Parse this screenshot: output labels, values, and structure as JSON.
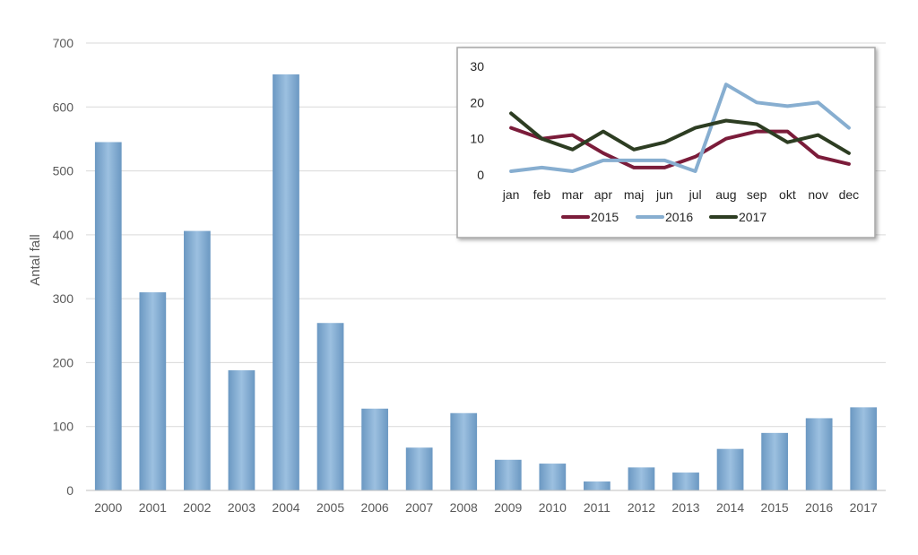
{
  "chart_data": [
    {
      "type": "bar",
      "title": "",
      "xlabel": "",
      "ylabel": "Antal fall",
      "ylim": [
        0,
        700
      ],
      "yticks": [
        0,
        100,
        200,
        300,
        400,
        500,
        600,
        700
      ],
      "grid": true,
      "categories": [
        "2000",
        "2001",
        "2002",
        "2003",
        "2004",
        "2005",
        "2006",
        "2007",
        "2008",
        "2009",
        "2010",
        "2011",
        "2012",
        "2013",
        "2014",
        "2015",
        "2016",
        "2017"
      ],
      "values": [
        545,
        310,
        406,
        188,
        651,
        262,
        128,
        67,
        121,
        48,
        42,
        14,
        36,
        28,
        65,
        90,
        113,
        130
      ],
      "bar_color": "#7FA9CF"
    },
    {
      "type": "line",
      "title": "",
      "xlabel": "",
      "ylabel": "",
      "ylim": [
        0,
        30
      ],
      "yticks": [
        0,
        10,
        20,
        30
      ],
      "grid": false,
      "legend_position": "bottom",
      "categories": [
        "jan",
        "feb",
        "mar",
        "apr",
        "maj",
        "jun",
        "jul",
        "aug",
        "sep",
        "okt",
        "nov",
        "dec"
      ],
      "series": [
        {
          "name": "2015",
          "color": "#7B1C3A",
          "values": [
            13,
            10,
            11,
            6,
            2,
            2,
            5,
            10,
            12,
            12,
            5,
            3
          ]
        },
        {
          "name": "2016",
          "color": "#87AED0",
          "values": [
            1,
            2,
            1,
            4,
            4,
            4,
            1,
            25,
            20,
            19,
            20,
            13
          ]
        },
        {
          "name": "2017",
          "color": "#2D3D22",
          "values": [
            17,
            10,
            7,
            12,
            7,
            9,
            13,
            15,
            14,
            9,
            11,
            6
          ]
        }
      ]
    }
  ]
}
